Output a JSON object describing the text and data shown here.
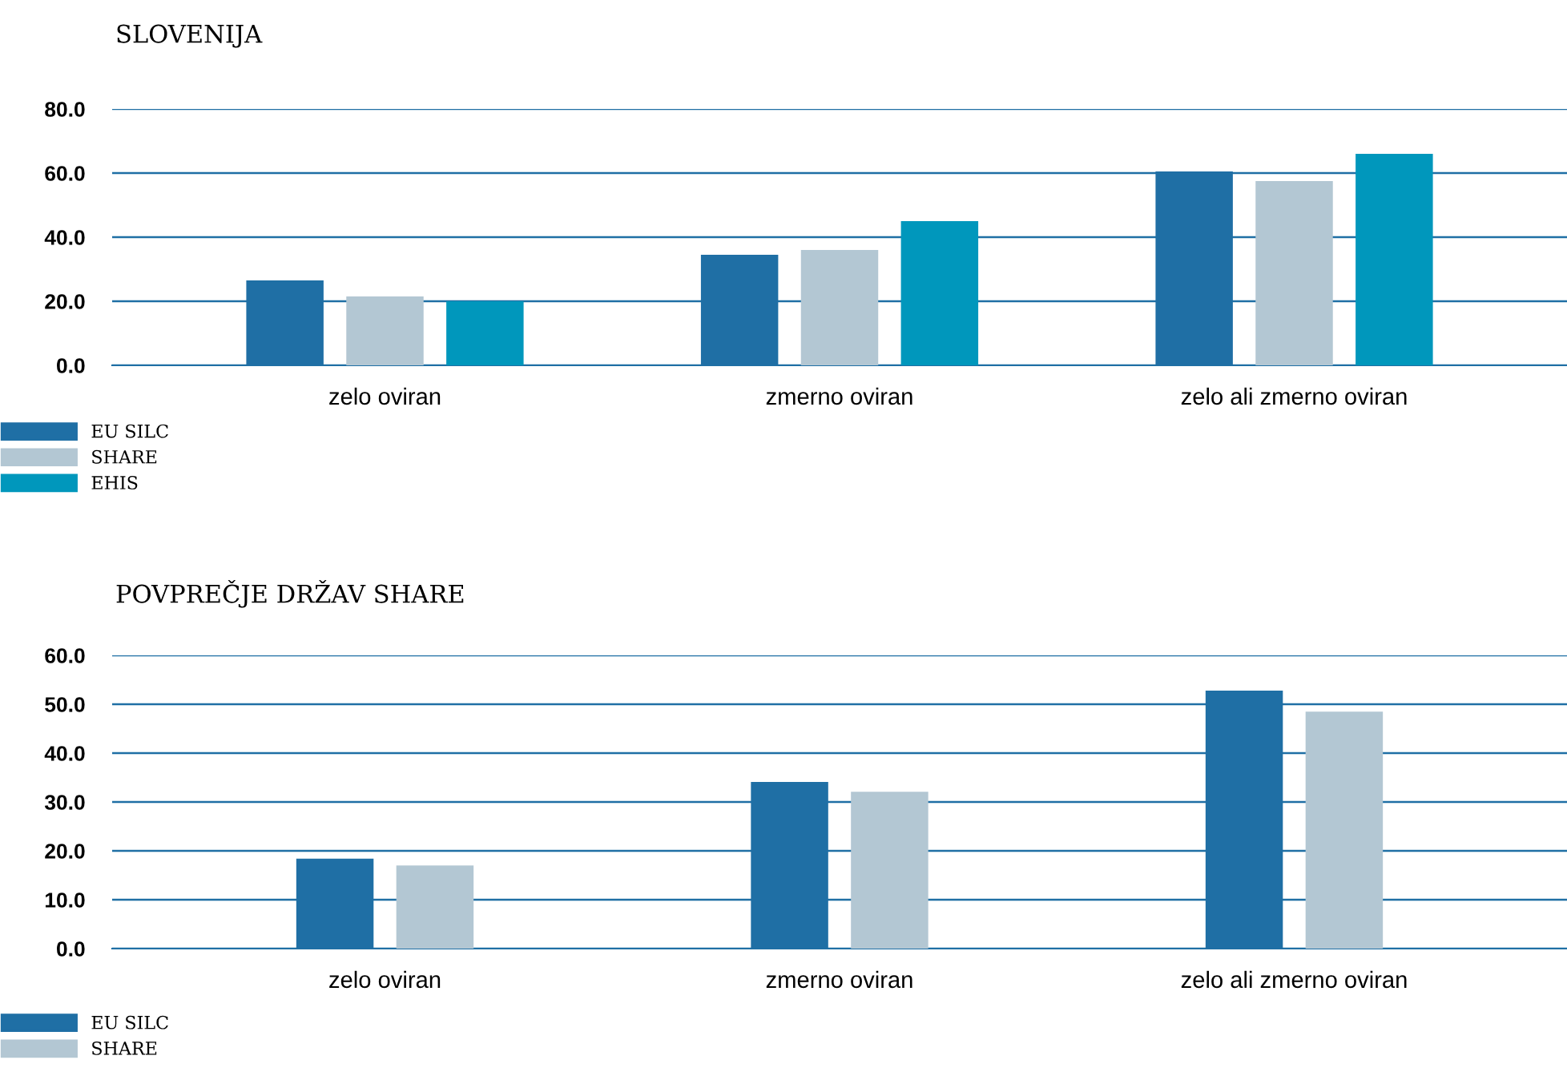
{
  "chart_data": [
    {
      "type": "bar",
      "title": "SLOVENIJA",
      "categories": [
        "zelo oviran",
        "zmerno oviran",
        "zelo ali zmerno oviran"
      ],
      "series": [
        {
          "name": "EU SILC",
          "color": "#1f6fa5",
          "values": [
            26.5,
            34.5,
            60.5
          ]
        },
        {
          "name": "SHARE",
          "color": "#b3c7d3",
          "values": [
            21.5,
            36.0,
            57.5
          ]
        },
        {
          "name": "EHIS",
          "color": "#0097bc",
          "values": [
            20.0,
            45.0,
            66.0
          ]
        }
      ],
      "ylim": [
        0,
        80
      ],
      "yticks": [
        {
          "value": 0,
          "label": "0.0"
        },
        {
          "value": 20,
          "label": "20.0"
        },
        {
          "value": 40,
          "label": "40.0"
        },
        {
          "value": 60,
          "label": "60.0"
        },
        {
          "value": 80,
          "label": "80.0"
        }
      ],
      "grid": "y",
      "legend": "bottom left"
    },
    {
      "type": "bar",
      "title": "POVPREČJE DRŽAV SHARE",
      "categories": [
        "zelo oviran",
        "zmerno oviran",
        "zelo ali zmerno oviran"
      ],
      "series": [
        {
          "name": "EU SILC",
          "color": "#1f6fa5",
          "values": [
            18.4,
            34.1,
            52.8
          ]
        },
        {
          "name": "SHARE",
          "color": "#b3c7d3",
          "values": [
            17.0,
            32.1,
            48.5
          ]
        }
      ],
      "ylim": [
        0,
        60
      ],
      "yticks": [
        {
          "value": 0,
          "label": "0.0"
        },
        {
          "value": 10,
          "label": "10.0"
        },
        {
          "value": 20,
          "label": "20.0"
        },
        {
          "value": 30,
          "label": "30.0"
        },
        {
          "value": 40,
          "label": "40.0"
        },
        {
          "value": 50,
          "label": "50.0"
        },
        {
          "value": 60,
          "label": "60.0"
        }
      ],
      "grid": "y",
      "legend": "bottom left"
    }
  ]
}
